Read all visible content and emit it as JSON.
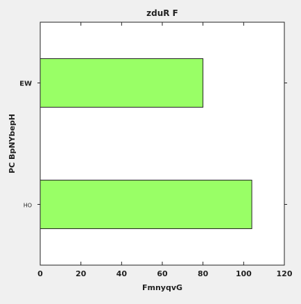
{
  "chart_data": {
    "type": "bar",
    "orientation": "horizontal",
    "title": "zduR F",
    "xlabel": "FmnyqvG",
    "ylabel": "PC BpNYbepH",
    "categories": [
      "EW",
      "HO"
    ],
    "values": [
      80,
      104
    ],
    "xlim": [
      0,
      120
    ],
    "xticks": [
      "0",
      "20",
      "40",
      "60",
      "80",
      "100",
      "120"
    ],
    "grid": false,
    "bar_color": "#99ff66",
    "edge_color": "#222222"
  }
}
